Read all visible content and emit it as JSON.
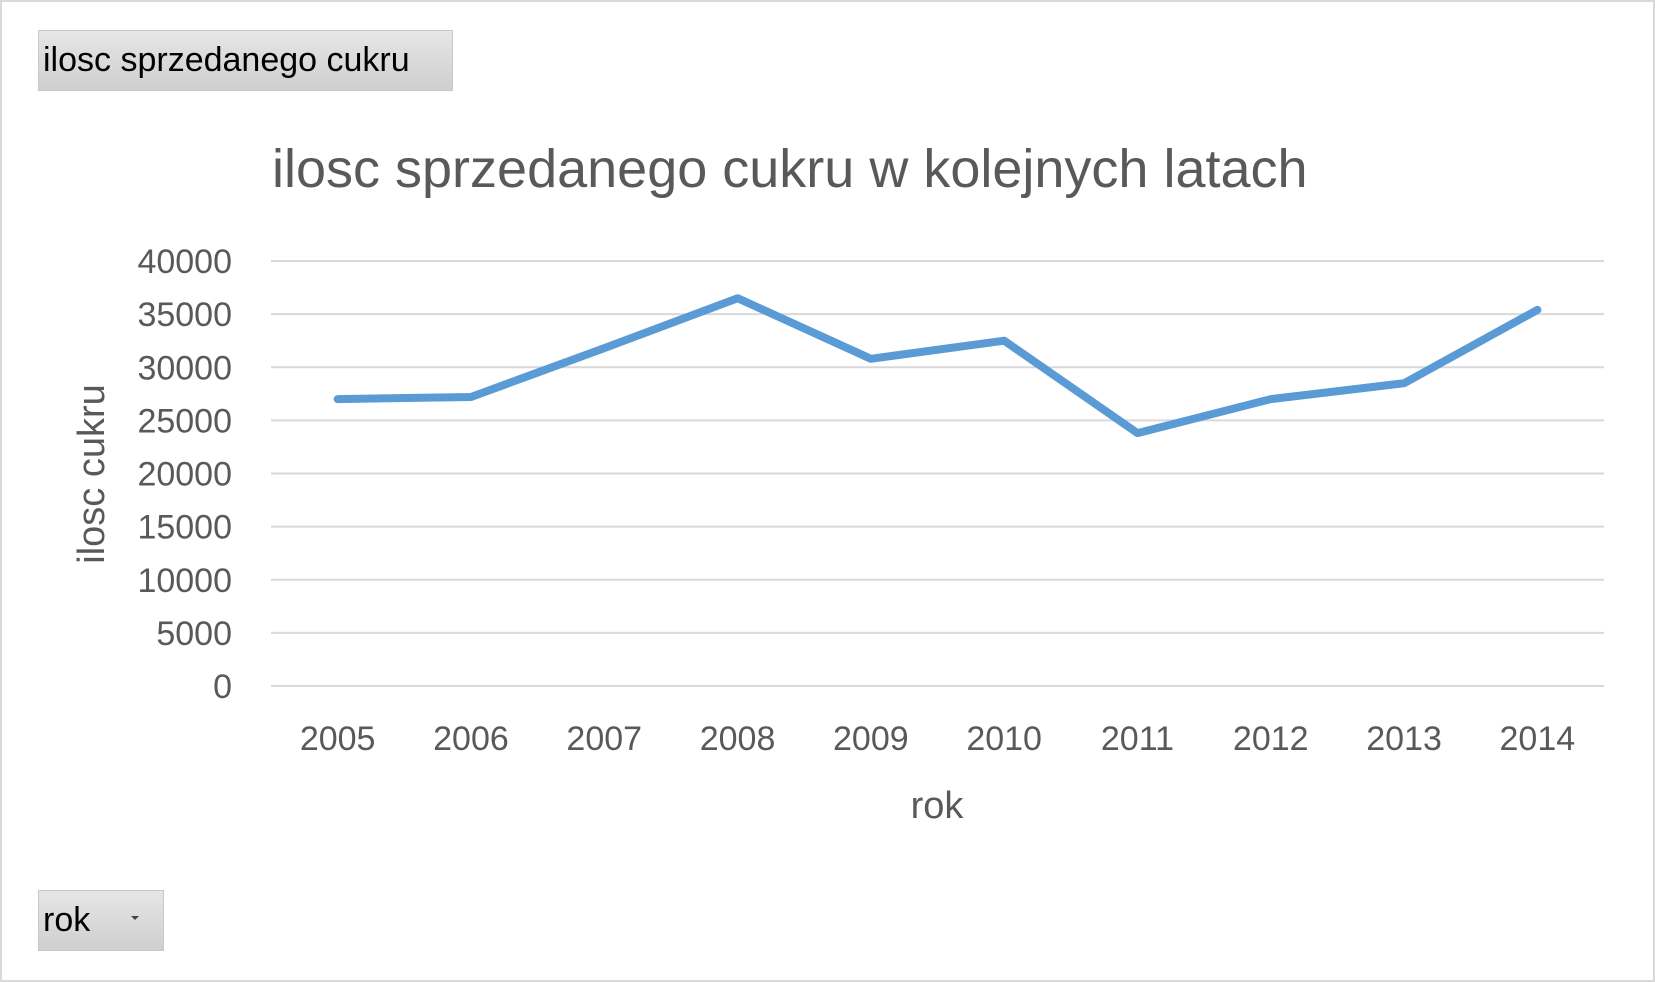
{
  "pivot": {
    "value_field_label": "ilosc sprzedanego  cukru",
    "axis_field_label": "rok",
    "axis_field_icon": "dropdown-arrow-icon"
  },
  "colors": {
    "series": "#5b9bd5",
    "grid": "#d9d9d9",
    "text": "#595959"
  },
  "chart_data": {
    "type": "line",
    "title": "ilosc sprzedanego cukru w kolejnych latach",
    "xlabel": "rok",
    "ylabel": "ilosc cukru",
    "categories": [
      "2005",
      "2006",
      "2007",
      "2008",
      "2009",
      "2010",
      "2011",
      "2012",
      "2013",
      "2014"
    ],
    "series": [
      {
        "values": [
          27000,
          27200,
          31800,
          36500,
          30800,
          32500,
          23800,
          27000,
          28500,
          35400
        ]
      }
    ],
    "yticks": [
      "0",
      "5000",
      "10000",
      "15000",
      "20000",
      "25000",
      "30000",
      "35000",
      "40000"
    ],
    "ylim": [
      0,
      40000
    ],
    "grid": true,
    "legend": "none"
  }
}
